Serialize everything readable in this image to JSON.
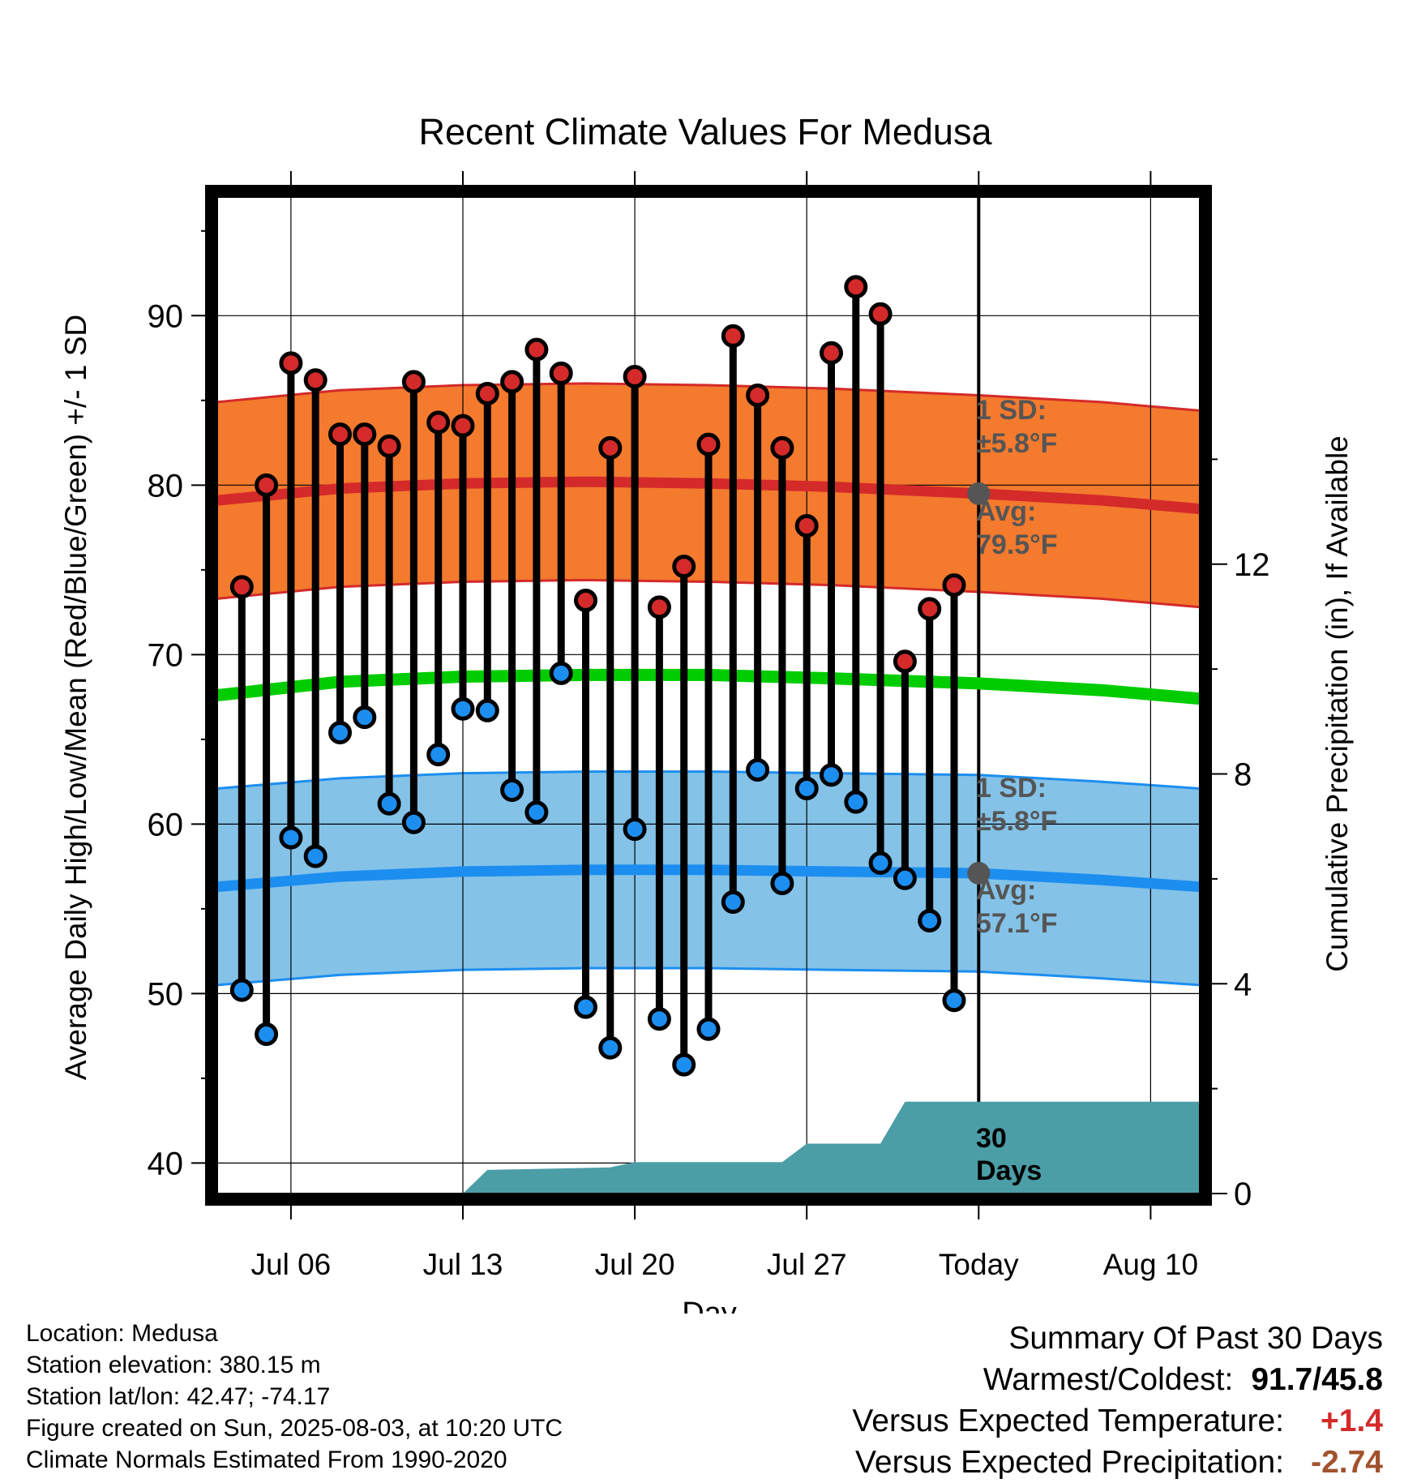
{
  "chart_data": {
    "type": "line",
    "title": "Recent Climate Values For Medusa",
    "xlabel": "Day",
    "ylabel": "Average Daily High/Low/Mean (Red/Blue/Green) +/- 1 SD",
    "y2label": "Cumulative Precipitation (in), If Available",
    "ylim": [
      38.2,
      97
    ],
    "y2lim": [
      0,
      19
    ],
    "xlim": [
      "2025-07-03",
      "2025-08-12"
    ],
    "x_ticks": [
      "Jul 06",
      "Jul 13",
      "Jul 20",
      "Jul 27",
      "Today",
      "Aug 10"
    ],
    "y_ticks": [
      40,
      50,
      60,
      70,
      80,
      90
    ],
    "y2_ticks": [
      0,
      4,
      8,
      12
    ],
    "grid": true,
    "today": "2025-08-03",
    "dates": [
      "2025-07-04",
      "2025-07-05",
      "2025-07-06",
      "2025-07-07",
      "2025-07-08",
      "2025-07-09",
      "2025-07-10",
      "2025-07-11",
      "2025-07-12",
      "2025-07-13",
      "2025-07-14",
      "2025-07-15",
      "2025-07-16",
      "2025-07-17",
      "2025-07-18",
      "2025-07-19",
      "2025-07-20",
      "2025-07-21",
      "2025-07-22",
      "2025-07-23",
      "2025-07-24",
      "2025-07-25",
      "2025-07-26",
      "2025-07-27",
      "2025-07-28",
      "2025-07-29",
      "2025-07-30",
      "2025-07-31",
      "2025-08-01",
      "2025-08-02"
    ],
    "series": [
      {
        "name": "High",
        "color": "#d42a2a",
        "values": [
          74.0,
          80.0,
          87.2,
          86.2,
          83.0,
          83.0,
          82.3,
          86.1,
          83.7,
          83.5,
          85.4,
          86.1,
          88.0,
          86.6,
          73.2,
          82.2,
          86.4,
          72.8,
          75.2,
          82.4,
          88.8,
          85.3,
          82.2,
          77.6,
          87.8,
          91.7,
          90.1,
          69.6,
          72.7,
          74.1
        ]
      },
      {
        "name": "Low",
        "color": "#1c8ef0",
        "values": [
          50.2,
          47.6,
          59.2,
          58.1,
          65.4,
          66.3,
          61.2,
          60.1,
          64.1,
          66.8,
          66.7,
          62.0,
          60.7,
          68.9,
          49.2,
          46.8,
          59.7,
          48.5,
          45.8,
          47.9,
          55.4,
          63.2,
          56.5,
          62.1,
          62.9,
          61.3,
          57.7,
          56.8,
          54.3,
          49.6
        ]
      }
    ],
    "normals": {
      "dates": [
        "2025-07-03",
        "2025-07-08",
        "2025-07-13",
        "2025-07-18",
        "2025-07-23",
        "2025-07-28",
        "2025-08-03",
        "2025-08-08",
        "2025-08-12"
      ],
      "high_avg": [
        79.1,
        79.8,
        80.1,
        80.2,
        80.1,
        79.9,
        79.5,
        79.1,
        78.6
      ],
      "low_avg": [
        56.3,
        56.9,
        57.2,
        57.3,
        57.3,
        57.2,
        57.1,
        56.7,
        56.3
      ],
      "mean_avg": [
        67.6,
        68.4,
        68.7,
        68.8,
        68.8,
        68.6,
        68.3,
        67.9,
        67.4
      ],
      "high_sd": 5.8,
      "low_sd": 5.8
    },
    "precip_cumulative": {
      "dates": [
        "2025-07-03",
        "2025-07-13",
        "2025-07-14",
        "2025-07-19",
        "2025-07-20",
        "2025-07-26",
        "2025-07-27",
        "2025-07-30",
        "2025-07-31",
        "2025-08-03",
        "2025-08-12"
      ],
      "values": [
        0,
        0,
        0.45,
        0.5,
        0.6,
        0.6,
        0.95,
        0.95,
        1.75,
        1.75,
        1.75
      ]
    },
    "colors": {
      "high_band": "#f47a2e",
      "high_line": "#d42a2a",
      "low_band": "#84c2e8",
      "low_line": "#1c8ef0",
      "mean_line": "#00cc00",
      "precip_fill": "#4b9da6",
      "annotation": "#555555"
    },
    "annotations": {
      "high_sd_label": "1 SD:",
      "high_sd_value": "±5.8°F",
      "high_avg_label": "Avg:",
      "high_avg_value": "79.5°F",
      "low_sd_label": "1 SD:",
      "low_sd_value": "±5.8°F",
      "low_avg_label": "Avg:",
      "low_avg_value": "57.1°F",
      "days_line1": "30",
      "days_line2": "Days"
    }
  },
  "info": {
    "location": "Location: Medusa",
    "elevation": "Station elevation: 380.15 m",
    "latlon": "Station lat/lon: 42.47; -74.17",
    "created": "Figure created on Sun, 2025-08-03, at 10:20 UTC",
    "normals": "Climate Normals Estimated From 1990-2020"
  },
  "summary": {
    "title": "Summary Of Past 30 Days",
    "warm_cold_label": "Warmest/Coldest:",
    "warm_cold_value": "91.7/45.8",
    "temp_label": "Versus Expected Temperature:",
    "temp_value": "+1.4",
    "temp_color": "#d42a2a",
    "precip_label": "Versus Expected Precipitation:",
    "precip_value": "-2.74",
    "precip_color": "#a0522d"
  }
}
